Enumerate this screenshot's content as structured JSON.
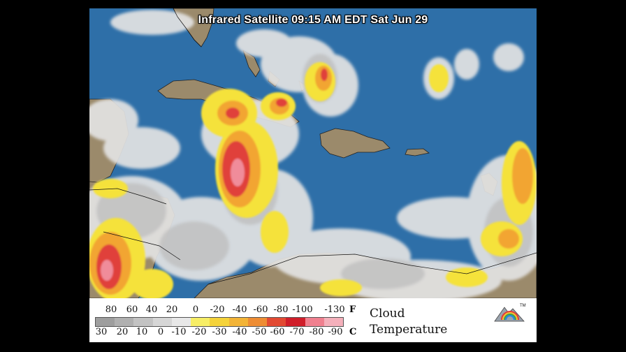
{
  "map": {
    "title": "Infrared Satellite 09:15 AM EDT Sat Jun 29",
    "colors": {
      "ocean": "#2e6fa8",
      "land": "#9b8a6b",
      "cloud_light": "#e6e6e6",
      "cloud_gray": "#b9b9b9",
      "cloud_yellow": "#f5e23a",
      "cloud_orange": "#f2a531",
      "cloud_red": "#e0413a",
      "cloud_pink": "#f08c9a"
    }
  },
  "legend": {
    "fahrenheit_ticks": [
      "80",
      "60",
      "40",
      "20",
      "0",
      "-20",
      "-40",
      "-60",
      "-80",
      "-100",
      "-130"
    ],
    "fahrenheit_unit": "F",
    "celsius_ticks": [
      "30",
      "20",
      "10",
      "0",
      "-10",
      "-20",
      "-30",
      "-40",
      "-50",
      "-60",
      "-70",
      "-80",
      "-90"
    ],
    "celsius_unit": "C",
    "caption_line1": "Cloud",
    "caption_line2": "Temperature",
    "colorbar": [
      "#9e9e9e",
      "#b0b0b0",
      "#c3c3c3",
      "#d6d6d6",
      "#e8e8e8",
      "#f7ee66",
      "#f5d33a",
      "#f3b437",
      "#ee8d34",
      "#e24a33",
      "#d01e2a",
      "#f0808f",
      "#f4b0bb"
    ],
    "logo_text": "TM"
  }
}
